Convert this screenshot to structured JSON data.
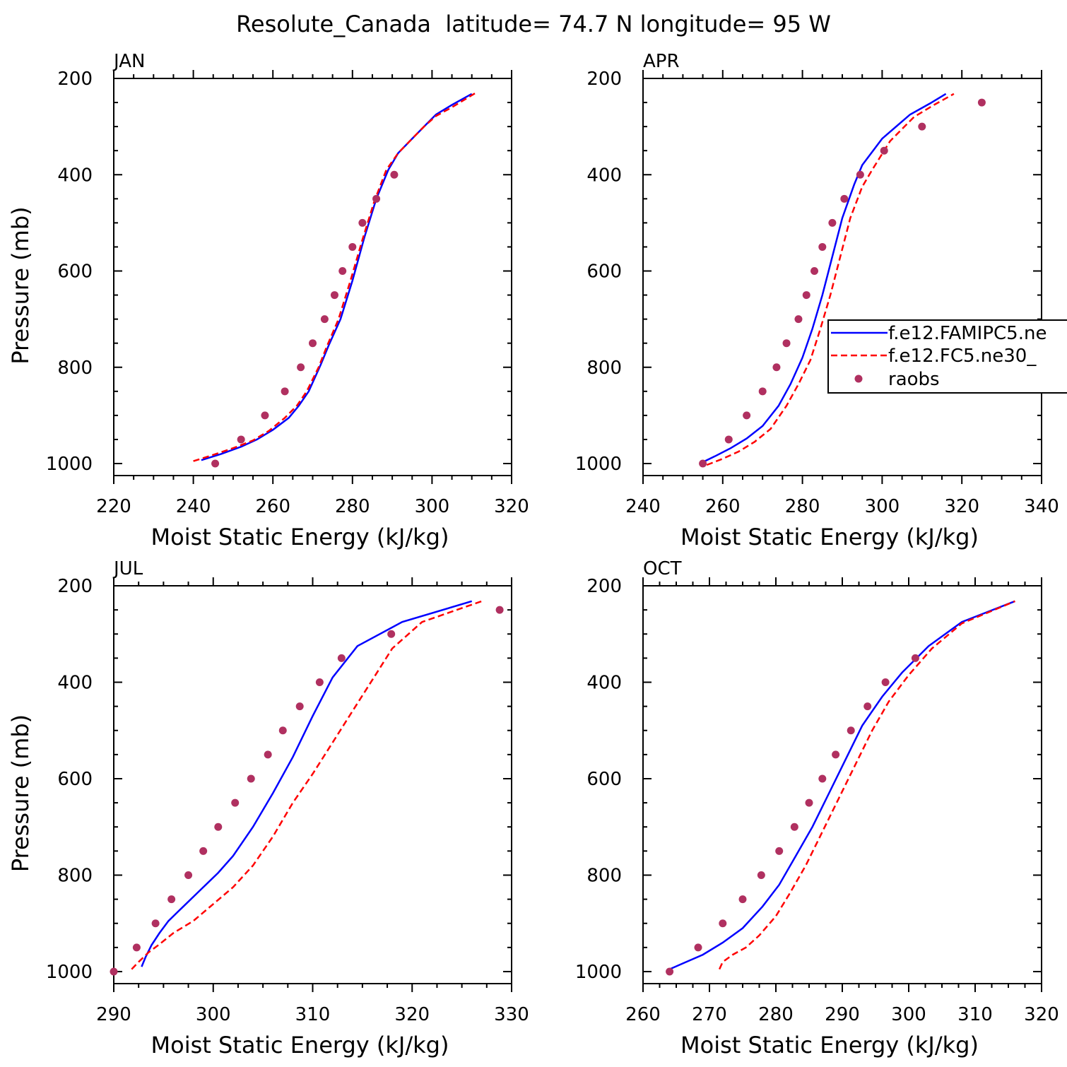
{
  "figure": {
    "title": "Resolute_Canada  latitude= 74.7 N longitude= 95 W"
  },
  "legend": {
    "entries": [
      {
        "label": "f.e12.FAMIPC5.ne",
        "style": "solid",
        "color": "#0000ff"
      },
      {
        "label": "f.e12.FC5.ne30_",
        "style": "dashed",
        "color": "#ff0000"
      },
      {
        "label": "raobs",
        "style": "marker",
        "color": "#b03060"
      }
    ]
  },
  "colors": {
    "model_a": "#0000ff",
    "model_b": "#ff0000",
    "obs": "#b03060"
  },
  "chart_data": [
    {
      "type": "line",
      "panel": "JAN",
      "xlabel": "Moist Static Energy (kJ/kg)",
      "ylabel": "Pressure (mb)",
      "xlim": [
        220,
        320
      ],
      "ylim": [
        1000,
        200
      ],
      "x_ticks": [
        220,
        240,
        260,
        280,
        300,
        320
      ],
      "y_ticks": [
        200,
        400,
        600,
        800,
        1000
      ],
      "series": [
        {
          "style": "solid",
          "color": "#0000ff",
          "points": [
            [
              242,
              993
            ],
            [
              247,
              980
            ],
            [
              252,
              965
            ],
            [
              256,
              950
            ],
            [
              260,
              930
            ],
            [
              264,
              905
            ],
            [
              266.5,
              880
            ],
            [
              269,
              850
            ],
            [
              272,
              795
            ],
            [
              274,
              755
            ],
            [
              277,
              700
            ],
            [
              280,
              620
            ],
            [
              283,
              530
            ],
            [
              286,
              450
            ],
            [
              289,
              390
            ],
            [
              291.5,
              355
            ],
            [
              295,
              325
            ],
            [
              298,
              300
            ],
            [
              301,
              275
            ],
            [
              305,
              255
            ],
            [
              310,
              232
            ]
          ]
        },
        {
          "style": "dashed",
          "color": "#ff0000",
          "points": [
            [
              240,
              995
            ],
            [
              245,
              982
            ],
            [
              250,
              968
            ],
            [
              255,
              952
            ],
            [
              259,
              932
            ],
            [
              263,
              905
            ],
            [
              266,
              880
            ],
            [
              268.5,
              850
            ],
            [
              271.5,
              800
            ],
            [
              273.5,
              758
            ],
            [
              276.5,
              700
            ],
            [
              279.5,
              620
            ],
            [
              282.5,
              535
            ],
            [
              285.5,
              455
            ],
            [
              288.5,
              390
            ],
            [
              291.5,
              355
            ],
            [
              295,
              325
            ],
            [
              298,
              300
            ],
            [
              301,
              278
            ],
            [
              305,
              260
            ],
            [
              311,
              230
            ]
          ]
        }
      ],
      "observations": [
        [
          245.5,
          1000
        ],
        [
          252,
          950
        ],
        [
          258,
          900
        ],
        [
          263,
          850
        ],
        [
          267,
          800
        ],
        [
          270,
          750
        ],
        [
          273,
          700
        ],
        [
          275.5,
          650
        ],
        [
          277.5,
          600
        ],
        [
          280,
          550
        ],
        [
          282.5,
          500
        ],
        [
          286,
          450
        ],
        [
          290.5,
          400
        ]
      ]
    },
    {
      "type": "line",
      "panel": "APR",
      "xlabel": "Moist Static Energy (kJ/kg)",
      "ylabel": "",
      "xlim": [
        240,
        340
      ],
      "ylim": [
        1000,
        200
      ],
      "x_ticks": [
        240,
        260,
        280,
        300,
        320,
        340
      ],
      "y_ticks": [
        200,
        400,
        600,
        800,
        1000
      ],
      "series": [
        {
          "style": "solid",
          "color": "#0000ff",
          "points": [
            [
              255,
              997
            ],
            [
              258,
              985
            ],
            [
              262,
              968
            ],
            [
              266,
              948
            ],
            [
              270,
              922
            ],
            [
              274,
              880
            ],
            [
              277,
              835
            ],
            [
              280,
              780
            ],
            [
              282.5,
              720
            ],
            [
              285,
              650
            ],
            [
              287.5,
              570
            ],
            [
              290,
              490
            ],
            [
              293,
              420
            ],
            [
              295,
              380
            ],
            [
              300,
              325
            ],
            [
              307,
              275
            ],
            [
              312,
              252
            ],
            [
              316,
              232
            ]
          ]
        },
        {
          "style": "dashed",
          "color": "#ff0000",
          "points": [
            [
              256,
              1003
            ],
            [
              260,
              990
            ],
            [
              264,
              975
            ],
            [
              268,
              955
            ],
            [
              272,
              928
            ],
            [
              276,
              880
            ],
            [
              279,
              835
            ],
            [
              282,
              785
            ],
            [
              284.5,
              720
            ],
            [
              287,
              650
            ],
            [
              289.5,
              570
            ],
            [
              292,
              490
            ],
            [
              295,
              425
            ],
            [
              297.5,
              390
            ],
            [
              302,
              330
            ],
            [
              308,
              280
            ],
            [
              313,
              255
            ],
            [
              318,
              232
            ]
          ]
        }
      ],
      "observations": [
        [
          255,
          1000
        ],
        [
          261.5,
          950
        ],
        [
          266,
          900
        ],
        [
          270,
          850
        ],
        [
          273.5,
          800
        ],
        [
          276,
          750
        ],
        [
          279,
          700
        ],
        [
          281,
          650
        ],
        [
          283,
          600
        ],
        [
          285,
          550
        ],
        [
          287.5,
          500
        ],
        [
          290.5,
          450
        ],
        [
          294.5,
          400
        ],
        [
          300.5,
          350
        ],
        [
          310,
          300
        ],
        [
          325,
          250
        ]
      ]
    },
    {
      "type": "line",
      "panel": "JUL",
      "xlabel": "Moist Static Energy (kJ/kg)",
      "ylabel": "Pressure (mb)",
      "xlim": [
        290,
        330
      ],
      "ylim": [
        1000,
        200
      ],
      "x_ticks": [
        290,
        300,
        310,
        320,
        330
      ],
      "y_ticks": [
        200,
        400,
        600,
        800,
        1000
      ],
      "series": [
        {
          "style": "solid",
          "color": "#0000ff",
          "points": [
            [
              292.8,
              990
            ],
            [
              293.2,
              970
            ],
            [
              293.8,
              945
            ],
            [
              294.6,
              920
            ],
            [
              295.5,
              895
            ],
            [
              297,
              865
            ],
            [
              298.5,
              835
            ],
            [
              300.5,
              795
            ],
            [
              302,
              760
            ],
            [
              304,
              700
            ],
            [
              306,
              630
            ],
            [
              308,
              555
            ],
            [
              310,
              470
            ],
            [
              312,
              390
            ],
            [
              314.5,
              325
            ],
            [
              319,
              275
            ],
            [
              326,
              232
            ]
          ]
        },
        {
          "style": "dashed",
          "color": "#ff0000",
          "points": [
            [
              291.8,
              995
            ],
            [
              292.5,
              980
            ],
            [
              293.5,
              960
            ],
            [
              294.5,
              945
            ],
            [
              296,
              920
            ],
            [
              298,
              895
            ],
            [
              300,
              860
            ],
            [
              302,
              825
            ],
            [
              304,
              780
            ],
            [
              306,
              720
            ],
            [
              308,
              650
            ],
            [
              310,
              590
            ],
            [
              312,
              525
            ],
            [
              314,
              460
            ],
            [
              316,
              395
            ],
            [
              318,
              330
            ],
            [
              321,
              275
            ],
            [
              327,
              232
            ]
          ]
        }
      ],
      "observations": [
        [
          290,
          1000
        ],
        [
          292.3,
          950
        ],
        [
          294.2,
          900
        ],
        [
          295.8,
          850
        ],
        [
          297.5,
          800
        ],
        [
          299,
          750
        ],
        [
          300.5,
          700
        ],
        [
          302.2,
          650
        ],
        [
          303.8,
          600
        ],
        [
          305.5,
          550
        ],
        [
          307,
          500
        ],
        [
          308.7,
          450
        ],
        [
          310.7,
          400
        ],
        [
          312.9,
          350
        ],
        [
          317.9,
          300
        ],
        [
          328.8,
          250
        ]
      ]
    },
    {
      "type": "line",
      "panel": "OCT",
      "xlabel": "Moist Static Energy (kJ/kg)",
      "ylabel": "",
      "xlim": [
        260,
        320
      ],
      "ylim": [
        1000,
        200
      ],
      "x_ticks": [
        260,
        270,
        280,
        290,
        300,
        310,
        320
      ],
      "y_ticks": [
        200,
        400,
        600,
        800,
        1000
      ],
      "series": [
        {
          "style": "solid",
          "color": "#0000ff",
          "points": [
            [
              264,
              995
            ],
            [
              266,
              983
            ],
            [
              269,
              965
            ],
            [
              272,
              940
            ],
            [
              275,
              910
            ],
            [
              278,
              865
            ],
            [
              280.5,
              820
            ],
            [
              283,
              760
            ],
            [
              285.5,
              700
            ],
            [
              288,
              630
            ],
            [
              290.5,
              560
            ],
            [
              293,
              490
            ],
            [
              296,
              430
            ],
            [
              299,
              380
            ],
            [
              303,
              325
            ],
            [
              308,
              275
            ],
            [
              316,
              232
            ]
          ]
        },
        {
          "style": "dashed",
          "color": "#ff0000",
          "points": [
            [
              271.5,
              995
            ],
            [
              272,
              980
            ],
            [
              273.5,
              965
            ],
            [
              275.5,
              950
            ],
            [
              277.5,
              925
            ],
            [
              280,
              885
            ],
            [
              282,
              840
            ],
            [
              284.5,
              780
            ],
            [
              287,
              710
            ],
            [
              289.5,
              640
            ],
            [
              292,
              570
            ],
            [
              294.5,
              500
            ],
            [
              297,
              440
            ],
            [
              300,
              385
            ],
            [
              303.5,
              330
            ],
            [
              308,
              278
            ],
            [
              316,
              232
            ]
          ]
        }
      ],
      "observations": [
        [
          264,
          1000
        ],
        [
          268.3,
          950
        ],
        [
          272,
          900
        ],
        [
          275,
          850
        ],
        [
          277.8,
          800
        ],
        [
          280.5,
          750
        ],
        [
          282.8,
          700
        ],
        [
          285,
          650
        ],
        [
          287,
          600
        ],
        [
          289,
          550
        ],
        [
          291.3,
          500
        ],
        [
          293.8,
          450
        ],
        [
          296.5,
          400
        ],
        [
          301,
          350
        ]
      ]
    }
  ]
}
